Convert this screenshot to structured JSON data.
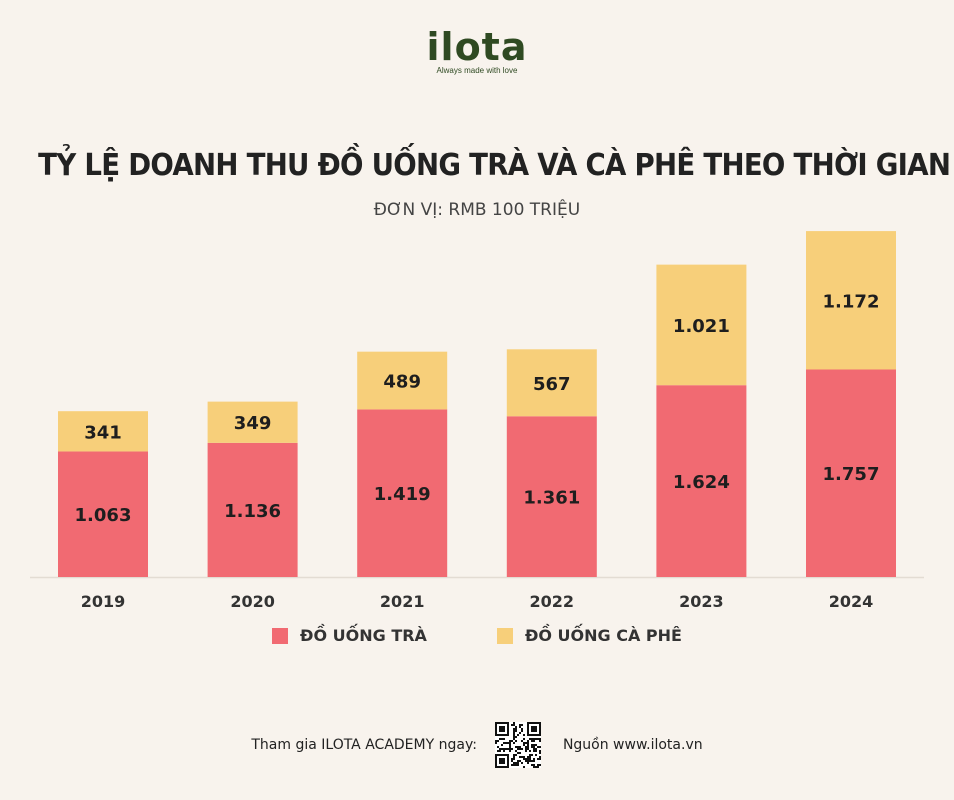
{
  "brand": {
    "name": "ilota",
    "tagline": "Always made with love"
  },
  "colors": {
    "tea": "#f16a72",
    "coffee": "#f7cf7a",
    "background": "#f8f3ed"
  },
  "footer": {
    "join_text": "Tham gia ILOTA ACADEMY ngay:",
    "source_text": "Nguồn www.ilota.vn"
  },
  "chart_data": {
    "type": "bar",
    "stacked": true,
    "title": "TỶ LỆ DOANH THU ĐỒ UỐNG TRÀ VÀ CÀ PHÊ THEO THỜI GIAN",
    "subtitle": "ĐƠN VỊ: RMB 100 TRIỆU",
    "categories": [
      "2019",
      "2020",
      "2021",
      "2022",
      "2023",
      "2024"
    ],
    "series": [
      {
        "name": "ĐỒ UỐNG TRÀ",
        "color": "#f16a72",
        "values": [
          1063,
          1136,
          1419,
          1361,
          1624,
          1757
        ],
        "labels": [
          "1.063",
          "1.136",
          "1.419",
          "1.361",
          "1.624",
          "1.757"
        ]
      },
      {
        "name": "ĐỒ UỐNG CÀ PHÊ",
        "color": "#f7cf7a",
        "values": [
          341,
          349,
          489,
          567,
          1021,
          1172
        ],
        "labels": [
          "341",
          "349",
          "489",
          "567",
          "1.021",
          "1.172"
        ]
      }
    ],
    "legend": "bottom-center",
    "grid": false
  }
}
